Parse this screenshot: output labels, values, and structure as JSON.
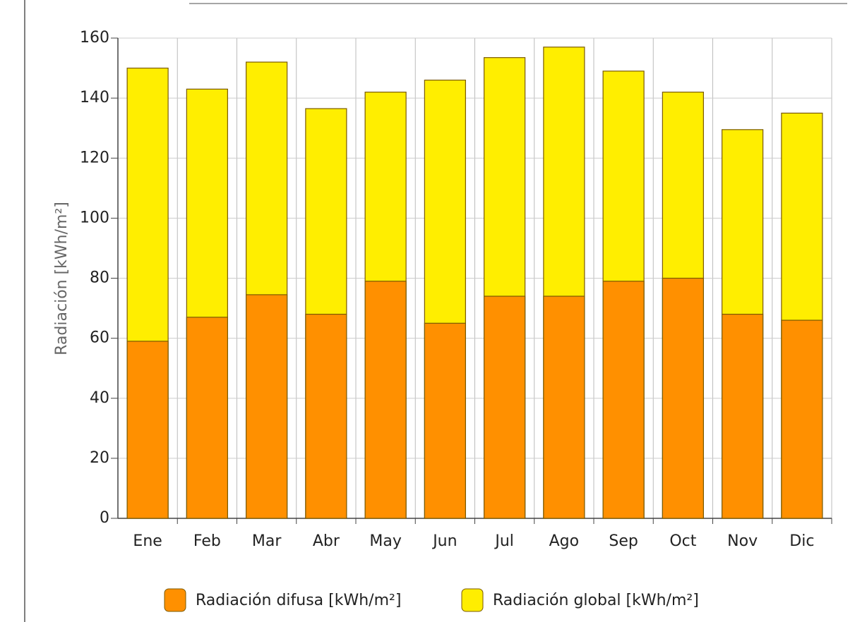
{
  "chart_data": {
    "type": "bar",
    "y_label": "Radiación [kWh/m²]",
    "categories": [
      "Ene",
      "Feb",
      "Mar",
      "Abr",
      "May",
      "Jun",
      "Jul",
      "Ago",
      "Sep",
      "Oct",
      "Nov",
      "Dic"
    ],
    "series": [
      {
        "name": "Radiación difusa [kWh/m²]",
        "color": "#ff9000",
        "values": [
          59,
          67,
          74.5,
          68,
          79,
          65,
          74,
          74,
          79,
          80,
          68,
          66
        ]
      },
      {
        "name": "Radiación global [kWh/m²]",
        "color": "#ffee00",
        "values": [
          150,
          143,
          152,
          136.5,
          142,
          146,
          153.5,
          157,
          149,
          142,
          129.5,
          135
        ]
      }
    ],
    "ylim": [
      0,
      160
    ],
    "yticks": [
      0,
      20,
      40,
      60,
      80,
      100,
      120,
      140,
      160
    ],
    "grid": true
  }
}
